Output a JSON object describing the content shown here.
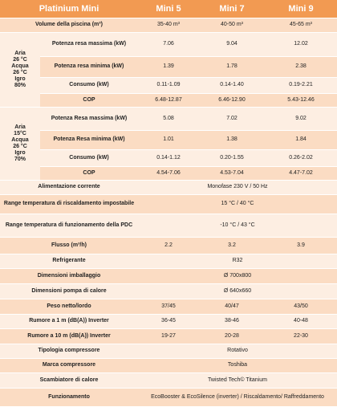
{
  "table": {
    "header": [
      "Platinium Mini",
      "Mini 5",
      "Mini 7",
      "Mini 9"
    ],
    "rows": [
      {
        "label": "Volume della piscina (m³)",
        "values": [
          "35-40 m³",
          "40-50 m³",
          "45-65 m³"
        ]
      },
      {
        "condition": [
          "Aria",
          "26 °C",
          "Acqua",
          "26 °C",
          "Igro",
          "80%"
        ],
        "rows": [
          {
            "label": "Potenza resa massima (kW)",
            "values": [
              "7.06",
              "9.04",
              "12.02"
            ]
          },
          {
            "label": "Potenza resa minima (kW)",
            "values": [
              "1.39",
              "1.78",
              "2.38"
            ]
          },
          {
            "label": "Consumo (kW)",
            "values": [
              "0.11-1.09",
              "0.14-1.40",
              "0.19-2.21"
            ]
          },
          {
            "label": "COP",
            "values": [
              "6.48-12.87",
              "6.46-12.90",
              "5.43-12.46"
            ]
          }
        ]
      },
      {
        "condition": [
          "Aria",
          "15°C",
          "Acqua",
          "26 °C",
          "Igro",
          "70%"
        ],
        "rows": [
          {
            "label": "Potenza Resa massima (kW)",
            "values": [
              "5.08",
              "7.02",
              "9.02"
            ]
          },
          {
            "label": "Potenza Resa minima (kW)",
            "values": [
              "1.01",
              "1.38",
              "1.84"
            ]
          },
          {
            "label": "Consumo (kW)",
            "values": [
              "0.14-1.12",
              "0.20-1.55",
              "0.26-2.02"
            ]
          },
          {
            "label": "COP",
            "values": [
              "4.54-7.06",
              "4.53-7.04",
              "4.47-7.02"
            ]
          }
        ]
      },
      {
        "label": "Alimentazione corrente",
        "values": [
          "Monofase 230 V / 50 Hz"
        ]
      },
      {
        "label": "Range temperatura di riscaldamento impostabile",
        "values": [
          "15 °C / 40 °C"
        ]
      },
      {
        "label": "Range temperatura di funzionamento della PDC",
        "values": [
          "-10 °C / 43 °C"
        ]
      },
      {
        "label": "Flusso (m³/h)",
        "values": [
          "2.2",
          "3.2",
          "3.9"
        ]
      },
      {
        "label": "Refrigerante",
        "values": [
          "R32"
        ]
      },
      {
        "label": "Dimensioni imballaggio",
        "values": [
          "Ø 700x800"
        ]
      },
      {
        "label": "Dimensioni pompa di calore",
        "values": [
          "Ø 640x660"
        ]
      },
      {
        "label": "Peso netto/lordo",
        "values": [
          "37/45",
          "40/47",
          "43/50"
        ]
      },
      {
        "label": "Rumore a 1 m (dB(A)) Inverter",
        "values": [
          "36-45",
          "38-46",
          "40-48"
        ]
      },
      {
        "label": "Rumore a 10 m (dB(A)) Inverter",
        "values": [
          "19-27",
          "20-28",
          "22-30"
        ]
      },
      {
        "label": "Tipologia compressore",
        "values": [
          "Rotativo"
        ]
      },
      {
        "label": "Marca compressore",
        "values": [
          "Toshiba"
        ]
      },
      {
        "label": "Scambiatore di calore",
        "values": [
          "Twisted Tech© Titanium"
        ]
      },
      {
        "label": "Funzionamento",
        "values": [
          "EcoBooster & EcoSilence (inverter) / Riscaldamento/ Raffreddamento"
        ]
      }
    ]
  }
}
